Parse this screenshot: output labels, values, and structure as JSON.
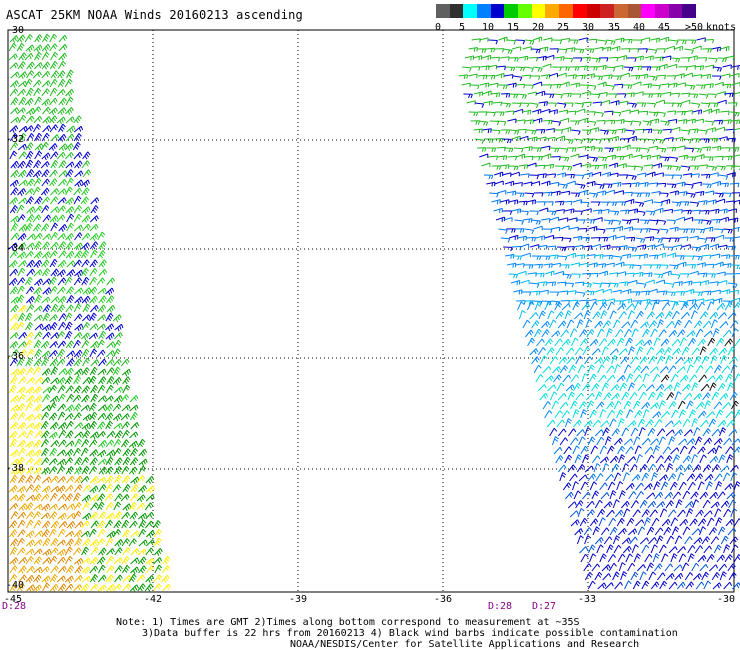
{
  "title": "ASCAT 25KM NOAA Winds 20160213 ascending",
  "colorbar": {
    "units_label": "knots",
    "labels": [
      "0",
      "5",
      "10",
      "15",
      "20",
      "25",
      "30",
      "35",
      "40",
      "45",
      ">50"
    ],
    "colors": [
      "#606060",
      "#303030",
      "#00ffff",
      "#0080ff",
      "#0000cc",
      "#00cc00",
      "#66ff00",
      "#ffff00",
      "#ffaa00",
      "#ff6600",
      "#ff0000",
      "#cc0000",
      "#cc2222",
      "#cc6633",
      "#aa5533",
      "#ff00ff",
      "#cc00cc",
      "#8800aa",
      "#440088"
    ]
  },
  "latitude_labels": [
    "-30",
    "-32",
    "-34",
    "-36",
    "-38",
    "-40"
  ],
  "longitude_labels": [
    "-45",
    "-42",
    "-39",
    "-36",
    "-33",
    "-30"
  ],
  "time_labels": [
    "D:28",
    "D:28",
    "D:27"
  ],
  "notes": [
    "Note: 1) Times are GMT 2)Times along bottom correspond to measurement at ~35S",
    "3)Data buffer is 22 hrs from 20160213 4) Black wind barbs indicate possible contamination",
    "NOAA/NESDIS/Center for Satellite Applications and Research"
  ]
}
